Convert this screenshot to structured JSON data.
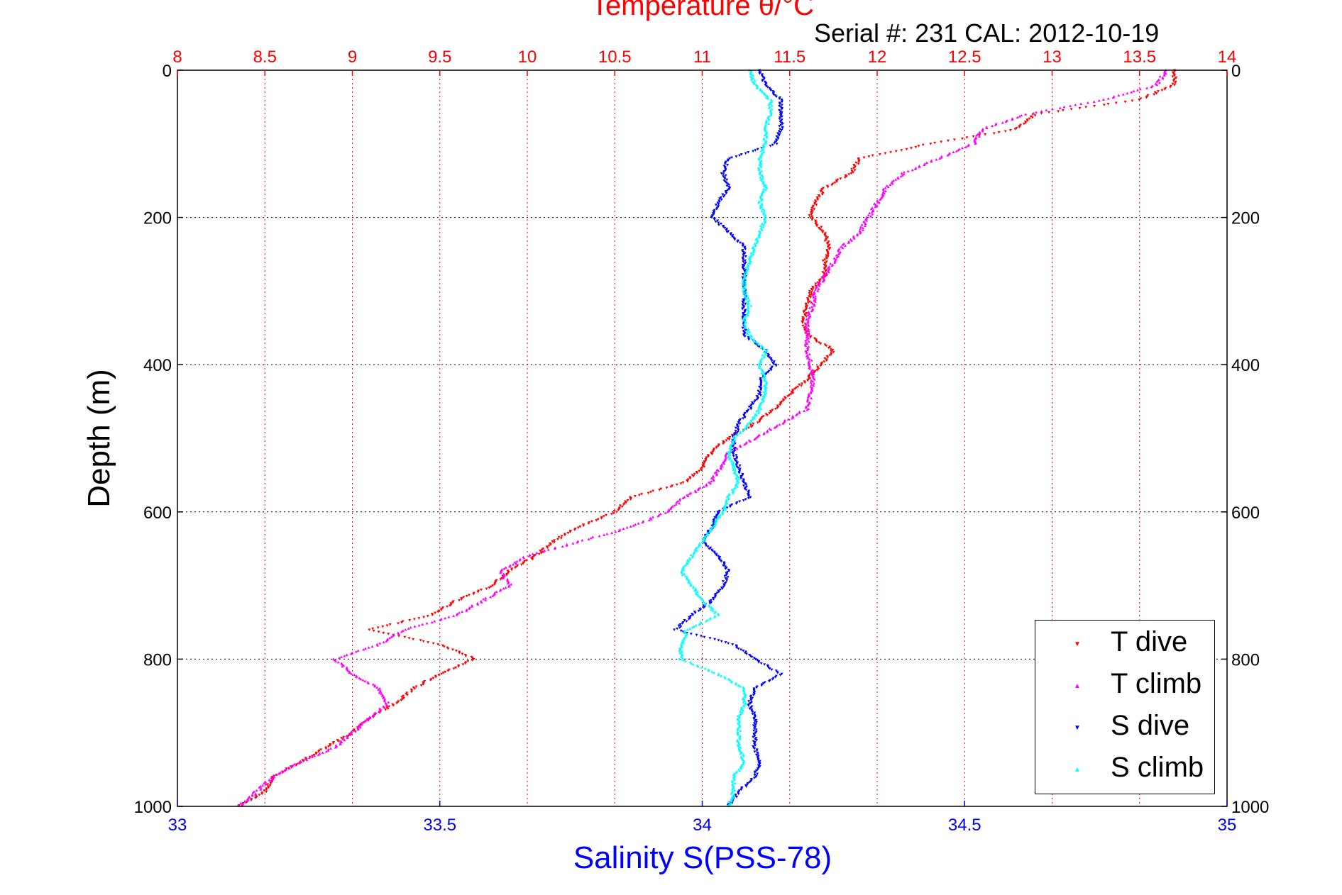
{
  "titles": {
    "top": "Temperature θ/°C",
    "serial": "Serial #: 231  CAL: 2012-10-19",
    "x_bottom": "Salinity S(PSS-78)",
    "y": "Depth (m)"
  },
  "colors": {
    "temperature_axis": "#ff0000",
    "salinity_axis": "#0000ff",
    "t_dive": "#ff0000",
    "t_climb": "#ff00ff",
    "s_dive": "#0000ff",
    "s_climb": "#00ffff"
  },
  "chart_data": {
    "type": "scatter",
    "y_axis": {
      "label": "Depth (m)",
      "lim": [
        0,
        1000
      ],
      "reversed": true,
      "ticks": [
        "0",
        "200",
        "400",
        "600",
        "800",
        "1000"
      ],
      "tick_values": [
        0,
        200,
        400,
        600,
        800,
        1000
      ]
    },
    "x_top_axis": {
      "label": "Temperature θ/°C",
      "lim": [
        8,
        14
      ],
      "ticks": [
        "8",
        "8.5",
        "9",
        "9.5",
        "10",
        "10.5",
        "11",
        "11.5",
        "12",
        "12.5",
        "13",
        "13.5",
        "14"
      ],
      "tick_values": [
        8,
        8.5,
        9,
        9.5,
        10,
        10.5,
        11,
        11.5,
        12,
        12.5,
        13,
        13.5,
        14
      ]
    },
    "x_bottom_axis": {
      "label": "Salinity S(PSS-78)",
      "lim": [
        33,
        35
      ],
      "ticks": [
        "33",
        "33.5",
        "34",
        "34.5",
        "35"
      ],
      "tick_values": [
        33,
        33.5,
        34,
        34.5,
        35
      ]
    },
    "grid": "dotted vertical (temperature) and horizontal (depth)",
    "legend_position": "bottom-right",
    "legend": [
      "T dive",
      "T climb",
      "S dive",
      "S climb"
    ],
    "series": [
      {
        "name": "T dive",
        "axis": "temperature",
        "depth": [
          0,
          20,
          40,
          60,
          80,
          100,
          120,
          140,
          160,
          180,
          200,
          220,
          240,
          260,
          280,
          300,
          320,
          340,
          360,
          380,
          400,
          420,
          440,
          460,
          480,
          500,
          520,
          540,
          560,
          580,
          600,
          620,
          640,
          660,
          680,
          700,
          720,
          740,
          760,
          780,
          800,
          820,
          840,
          860,
          880,
          900,
          920,
          940,
          960,
          980,
          1000
        ],
        "values": [
          13.7,
          13.7,
          13.5,
          12.9,
          12.8,
          12.3,
          11.9,
          11.85,
          11.7,
          11.65,
          11.62,
          11.7,
          11.72,
          11.7,
          11.7,
          11.62,
          11.6,
          11.58,
          11.6,
          11.75,
          11.68,
          11.6,
          11.5,
          11.42,
          11.3,
          11.15,
          11.05,
          11.0,
          10.9,
          10.6,
          10.5,
          10.3,
          10.15,
          10.05,
          9.9,
          9.8,
          9.6,
          9.45,
          9.1,
          9.5,
          9.7,
          9.5,
          9.35,
          9.25,
          9.1,
          9.0,
          8.85,
          8.7,
          8.55,
          8.5,
          8.35
        ]
      },
      {
        "name": "T climb",
        "axis": "temperature",
        "depth": [
          0,
          20,
          40,
          60,
          80,
          100,
          120,
          140,
          160,
          180,
          200,
          220,
          240,
          260,
          280,
          300,
          320,
          340,
          360,
          380,
          400,
          420,
          440,
          460,
          480,
          500,
          520,
          540,
          560,
          580,
          600,
          620,
          640,
          660,
          680,
          700,
          720,
          740,
          760,
          780,
          800,
          820,
          840,
          860,
          880,
          900,
          920,
          940,
          960,
          980,
          1000
        ],
        "values": [
          13.65,
          13.6,
          13.3,
          12.85,
          12.6,
          12.55,
          12.35,
          12.15,
          12.05,
          12.0,
          11.95,
          11.9,
          11.8,
          11.75,
          11.7,
          11.65,
          11.63,
          11.6,
          11.6,
          11.6,
          11.62,
          11.63,
          11.62,
          11.6,
          11.45,
          11.3,
          11.15,
          11.1,
          11.05,
          10.9,
          10.8,
          10.6,
          10.3,
          10.0,
          9.85,
          9.9,
          9.75,
          9.6,
          9.3,
          9.15,
          8.9,
          9.0,
          9.15,
          9.2,
          9.1,
          9.0,
          8.9,
          8.7,
          8.55,
          8.45,
          8.35
        ]
      },
      {
        "name": "S dive",
        "axis": "salinity",
        "depth": [
          0,
          20,
          40,
          60,
          80,
          100,
          120,
          140,
          160,
          180,
          200,
          220,
          240,
          260,
          280,
          300,
          320,
          340,
          360,
          380,
          400,
          420,
          440,
          460,
          480,
          500,
          520,
          540,
          560,
          580,
          600,
          620,
          640,
          660,
          680,
          700,
          720,
          740,
          760,
          780,
          800,
          820,
          840,
          860,
          880,
          900,
          920,
          940,
          960,
          980,
          1000
        ],
        "values": [
          34.11,
          34.12,
          34.15,
          34.15,
          34.15,
          34.14,
          34.05,
          34.04,
          34.05,
          34.03,
          34.02,
          34.05,
          34.08,
          34.08,
          34.08,
          34.08,
          34.08,
          34.08,
          34.08,
          34.12,
          34.14,
          34.11,
          34.11,
          34.09,
          34.07,
          34.06,
          34.06,
          34.07,
          34.08,
          34.09,
          34.03,
          34.02,
          34.0,
          34.03,
          34.05,
          34.04,
          34.02,
          33.98,
          33.95,
          34.06,
          34.1,
          34.15,
          34.1,
          34.09,
          34.1,
          34.1,
          34.1,
          34.11,
          34.1,
          34.07,
          34.05
        ]
      },
      {
        "name": "S climb",
        "axis": "salinity",
        "depth": [
          0,
          20,
          40,
          60,
          80,
          100,
          120,
          140,
          160,
          180,
          200,
          220,
          240,
          260,
          280,
          300,
          320,
          340,
          360,
          380,
          400,
          420,
          440,
          460,
          480,
          500,
          520,
          540,
          560,
          580,
          600,
          620,
          640,
          660,
          680,
          700,
          720,
          740,
          760,
          780,
          800,
          820,
          840,
          860,
          880,
          900,
          920,
          940,
          960,
          980,
          1000
        ],
        "values": [
          34.09,
          34.1,
          34.13,
          34.13,
          34.12,
          34.12,
          34.11,
          34.11,
          34.12,
          34.11,
          34.12,
          34.11,
          34.1,
          34.09,
          34.08,
          34.08,
          34.09,
          34.08,
          34.09,
          34.12,
          34.11,
          34.12,
          34.12,
          34.11,
          34.09,
          34.06,
          34.05,
          34.06,
          34.07,
          34.05,
          34.04,
          34.02,
          34.0,
          33.98,
          33.96,
          33.98,
          34.0,
          34.03,
          33.97,
          33.96,
          33.96,
          34.03,
          34.08,
          34.08,
          34.07,
          34.07,
          34.07,
          34.08,
          34.06,
          34.06,
          34.05
        ]
      }
    ]
  }
}
